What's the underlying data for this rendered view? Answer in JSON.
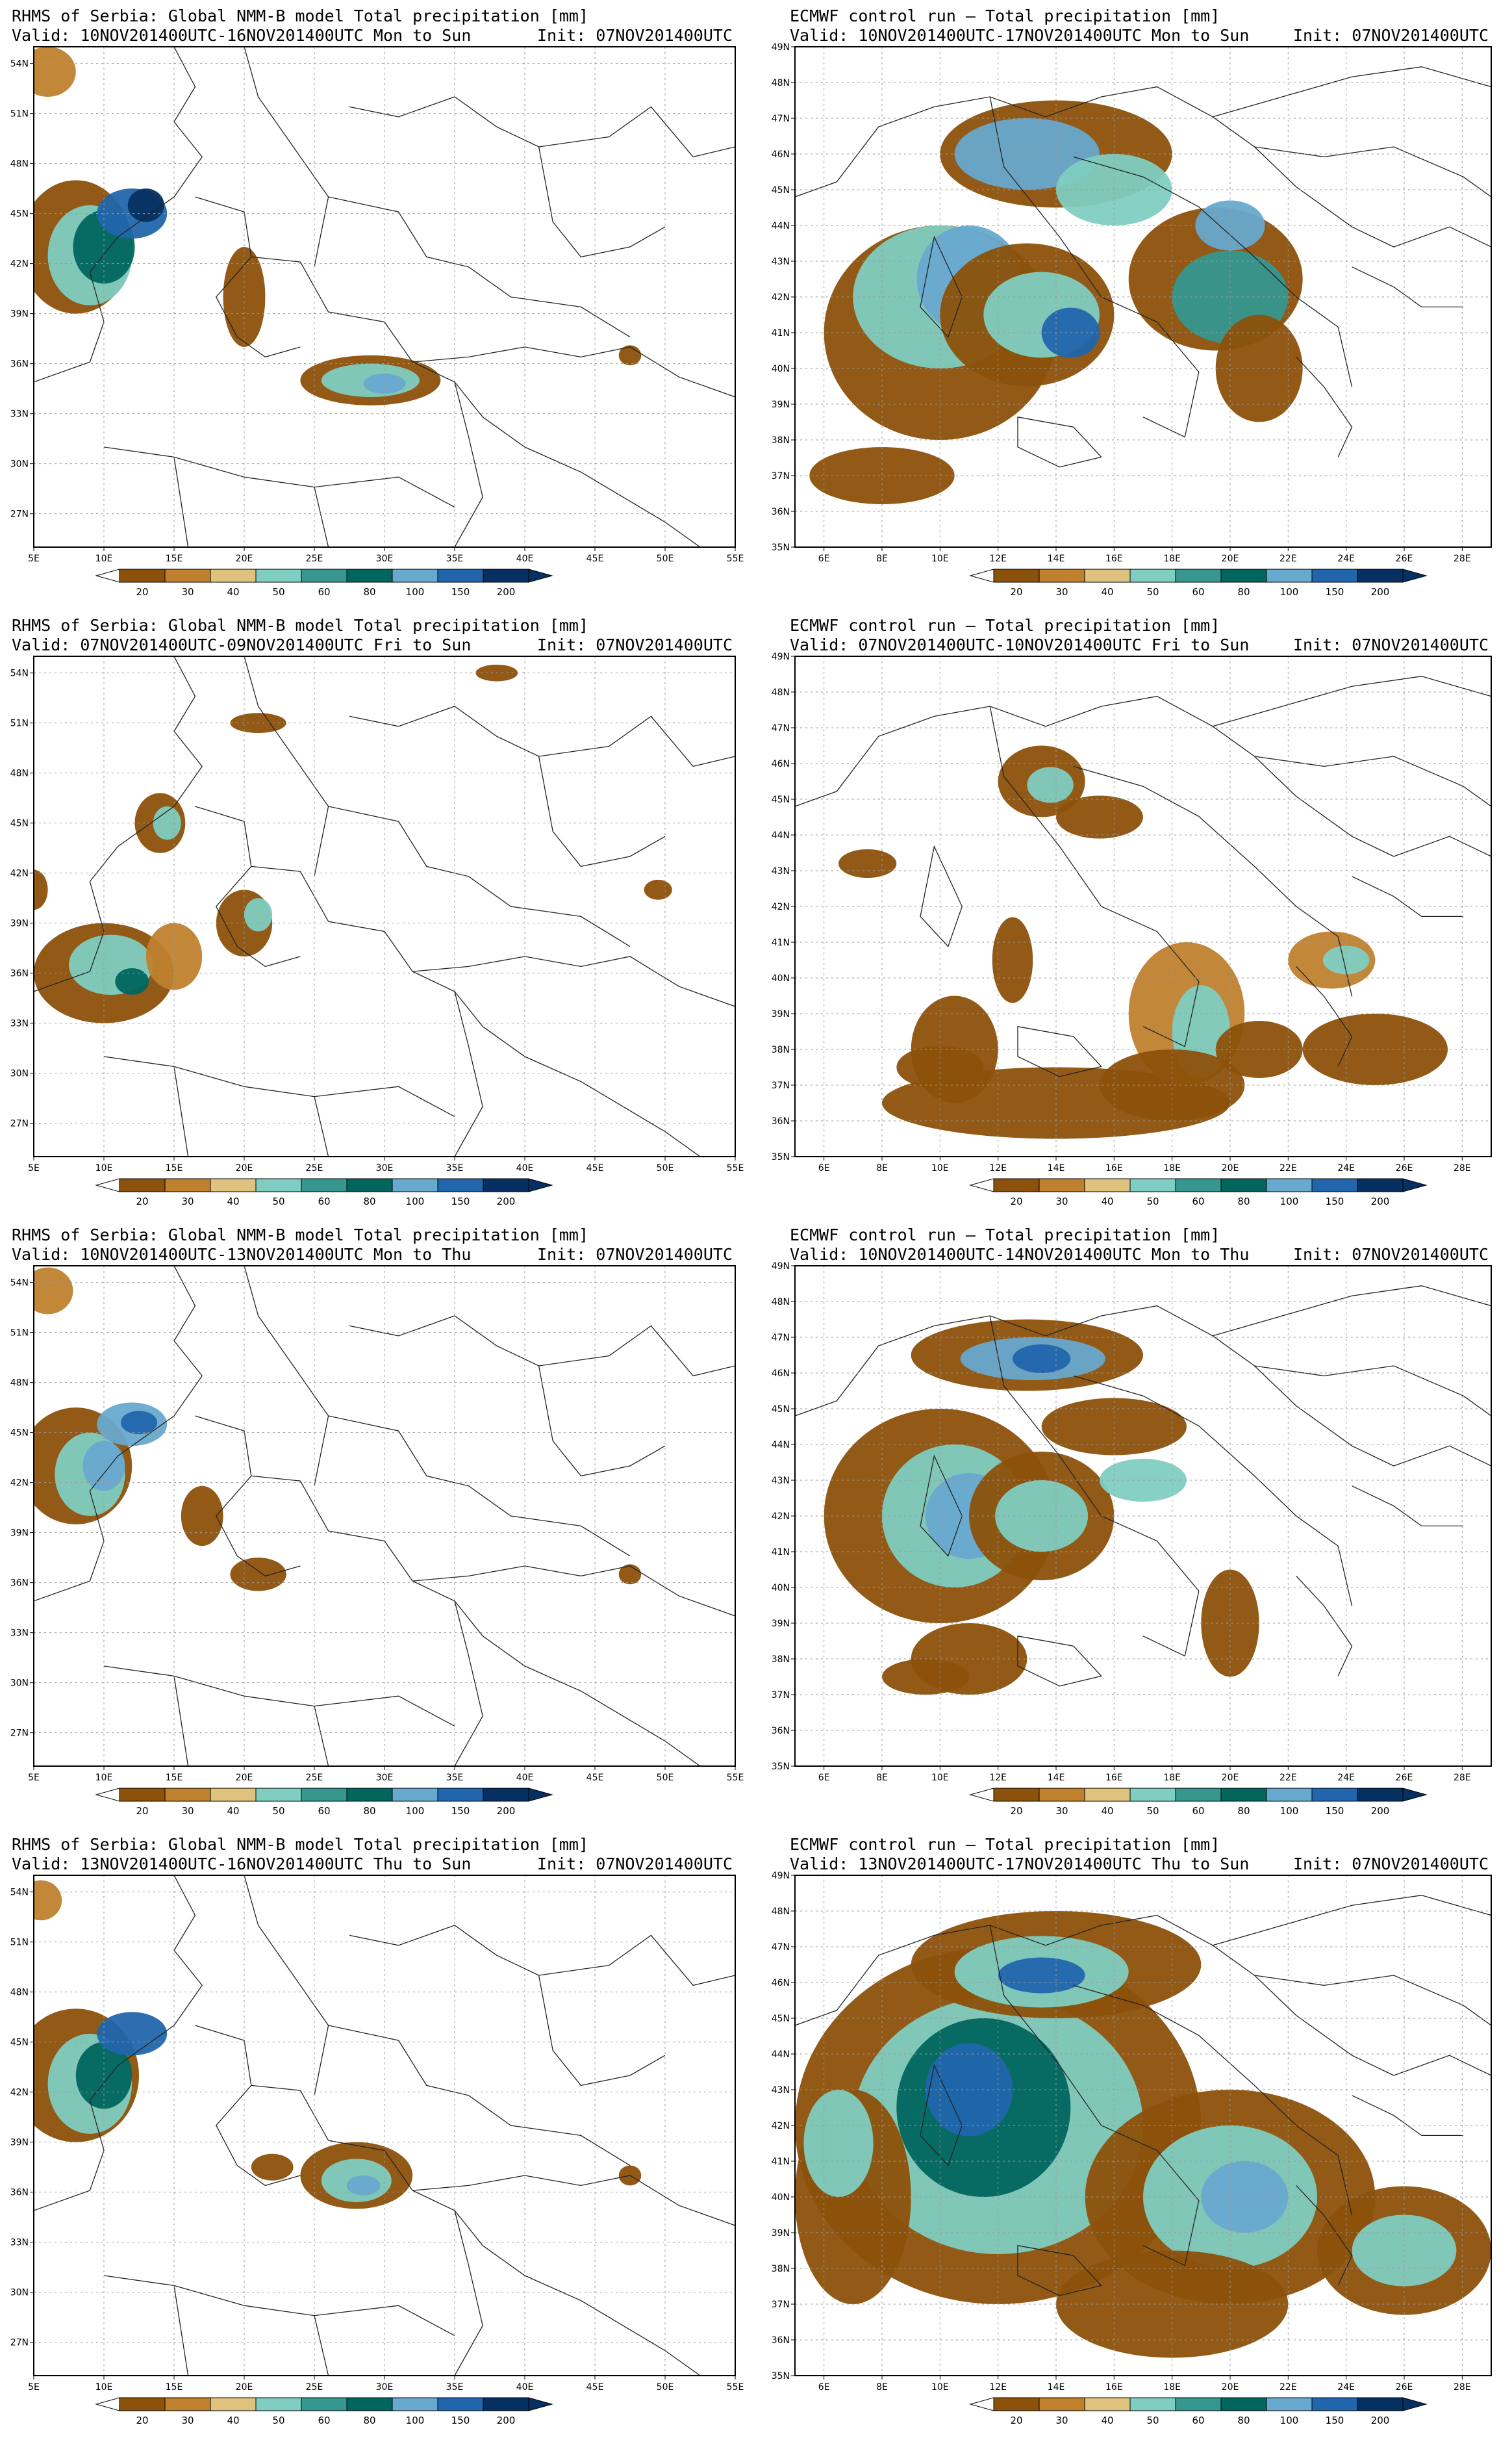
{
  "panels": [
    {
      "id": "p1",
      "model": "rhms",
      "title": "RHMS of Serbia: Global NMM-B model Total precipitation [mm]",
      "valid": "Valid: 10NOV201400UTC-16NOV201400UTC Mon to Sun",
      "init": "Init: 07NOV201400UTC"
    },
    {
      "id": "p2",
      "model": "ecmwf",
      "title": "ECMWF control run – Total precipitation [mm]",
      "valid": "Valid: 10NOV201400UTC-17NOV201400UTC Mon to Sun",
      "init": "Init: 07NOV201400UTC"
    },
    {
      "id": "p3",
      "model": "rhms",
      "title": "RHMS of Serbia: Global NMM-B model Total precipitation [mm]",
      "valid": "Valid: 07NOV201400UTC-09NOV201400UTC Fri to Sun",
      "init": "Init: 07NOV201400UTC"
    },
    {
      "id": "p4",
      "model": "ecmwf",
      "title": "ECMWF control run – Total precipitation [mm]",
      "valid": "Valid: 07NOV201400UTC-10NOV201400UTC Fri to Sun",
      "init": "Init: 07NOV201400UTC"
    },
    {
      "id": "p5",
      "model": "rhms",
      "title": "RHMS of Serbia: Global NMM-B model Total precipitation [mm]",
      "valid": "Valid: 10NOV201400UTC-13NOV201400UTC Mon to Thu",
      "init": "Init: 07NOV201400UTC"
    },
    {
      "id": "p6",
      "model": "ecmwf",
      "title": "ECMWF control run – Total precipitation [mm]",
      "valid": "Valid: 10NOV201400UTC-14NOV201400UTC Mon to Thu",
      "init": "Init: 07NOV201400UTC"
    },
    {
      "id": "p7",
      "model": "rhms",
      "title": "RHMS of Serbia: Global NMM-B model Total precipitation [mm]",
      "valid": "Valid: 13NOV201400UTC-16NOV201400UTC Thu to Sun",
      "init": "Init: 07NOV201400UTC"
    },
    {
      "id": "p8",
      "model": "ecmwf",
      "title": "ECMWF control run – Total precipitation [mm]",
      "valid": "Valid: 13NOV201400UTC-17NOV201400UTC Thu to Sun",
      "init": "Init: 07NOV201400UTC"
    }
  ],
  "rhms_axes": {
    "lon_range": [
      5,
      55
    ],
    "lat_range": [
      25,
      55
    ],
    "lon_ticks": [
      "5E",
      "10E",
      "15E",
      "20E",
      "25E",
      "30E",
      "35E",
      "40E",
      "45E",
      "50E",
      "55E"
    ],
    "lat_ticks": [
      "54N",
      "51N",
      "48N",
      "45N",
      "42N",
      "39N",
      "36N",
      "33N",
      "30N",
      "27N"
    ]
  },
  "ecmwf_axes": {
    "lon_range": [
      5,
      29
    ],
    "lat_range": [
      35,
      49
    ],
    "lon_ticks": [
      "6E",
      "8E",
      "10E",
      "12E",
      "14E",
      "16E",
      "18E",
      "20E",
      "22E",
      "24E",
      "26E",
      "28E"
    ],
    "lat_ticks": [
      "49N",
      "48N",
      "47N",
      "46N",
      "45N",
      "44N",
      "43N",
      "42N",
      "41N",
      "40N",
      "39N",
      "38N",
      "37N",
      "36N",
      "35N"
    ]
  },
  "colorbar": {
    "levels": [
      "20",
      "30",
      "40",
      "50",
      "60",
      "80",
      "100",
      "150",
      "200"
    ],
    "colors": [
      "#8c510a",
      "#bf812d",
      "#dfc27d",
      "#80cdc1",
      "#35978f",
      "#01665e",
      "#67a9cf",
      "#2166ac",
      "#053061"
    ]
  }
}
